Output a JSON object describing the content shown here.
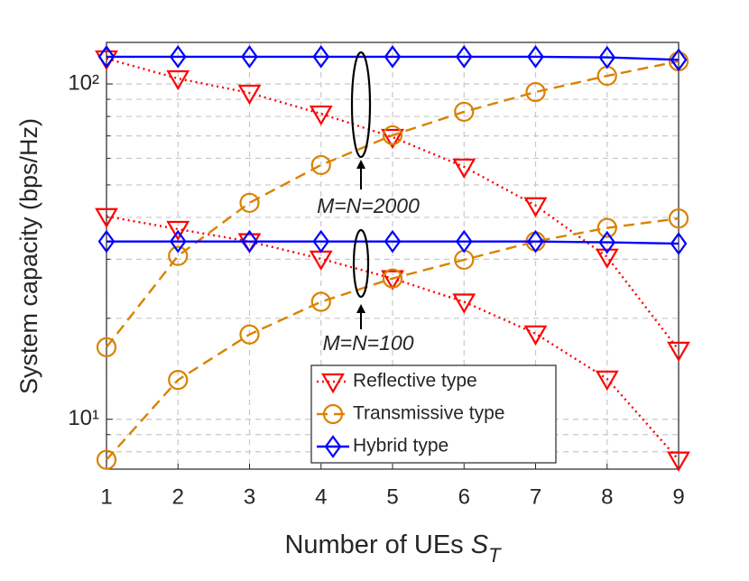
{
  "chart_data": {
    "type": "line",
    "xlabel": {
      "text": "Number of UEs",
      "symbol": "S",
      "subscript": "T"
    },
    "ylabel": "System capacity (bps/Hz)",
    "x": [
      1,
      2,
      3,
      4,
      5,
      6,
      7,
      8,
      9
    ],
    "xlim": [
      1,
      9
    ],
    "xticks": [
      1,
      2,
      3,
      4,
      5,
      6,
      7,
      8,
      9
    ],
    "ylim": [
      7.1,
      133
    ],
    "ylog": true,
    "yticks": [
      {
        "value": 10,
        "label": "10¹"
      },
      {
        "value": 100,
        "label": "10²"
      }
    ],
    "yminorticks": [
      8,
      9,
      20,
      30,
      40,
      50,
      60,
      70,
      80,
      90
    ],
    "grid": true,
    "legend": "lower center",
    "series": [
      {
        "name": "Reflective type",
        "color": "#ff0000",
        "marker": "triangle-down",
        "linestyle": "dotted",
        "values": [
          119,
          103.8,
          94,
          81.5,
          69.4,
          56.6,
          43.4,
          30.5,
          16.1
        ]
      },
      {
        "name": "Transmissive type",
        "color": "#d98200",
        "marker": "circle",
        "linestyle": "dashed",
        "values": [
          16.4,
          30.7,
          44.2,
          57.3,
          70.3,
          82.6,
          94.6,
          105.7,
          116.8
        ]
      },
      {
        "name": "Hybrid type",
        "color": "#0000ff",
        "marker": "diamond",
        "linestyle": "solid",
        "values": [
          120.5,
          120.5,
          120.5,
          120.5,
          120.5,
          120.5,
          120.5,
          120,
          118
        ]
      },
      {
        "name": "Reflective type",
        "color": "#ff0000",
        "marker": "triangle-down",
        "linestyle": "dotted",
        "values": [
          40.3,
          36.9,
          33.9,
          30.1,
          26.3,
          22.4,
          18.0,
          13.2,
          7.57
        ]
      },
      {
        "name": "Transmissive type",
        "color": "#d98200",
        "marker": "circle",
        "linestyle": "dashed",
        "values": [
          7.57,
          13.1,
          17.9,
          22.4,
          26.3,
          29.9,
          33.9,
          37.2,
          39.7
        ]
      },
      {
        "name": "Hybrid type",
        "color": "#0000ff",
        "marker": "diamond",
        "linestyle": "solid",
        "values": [
          33.9,
          33.9,
          33.9,
          33.9,
          33.9,
          33.9,
          33.9,
          33.7,
          33.4
        ]
      }
    ],
    "annotations": [
      "M=N=2000",
      "M=N=100"
    ]
  }
}
